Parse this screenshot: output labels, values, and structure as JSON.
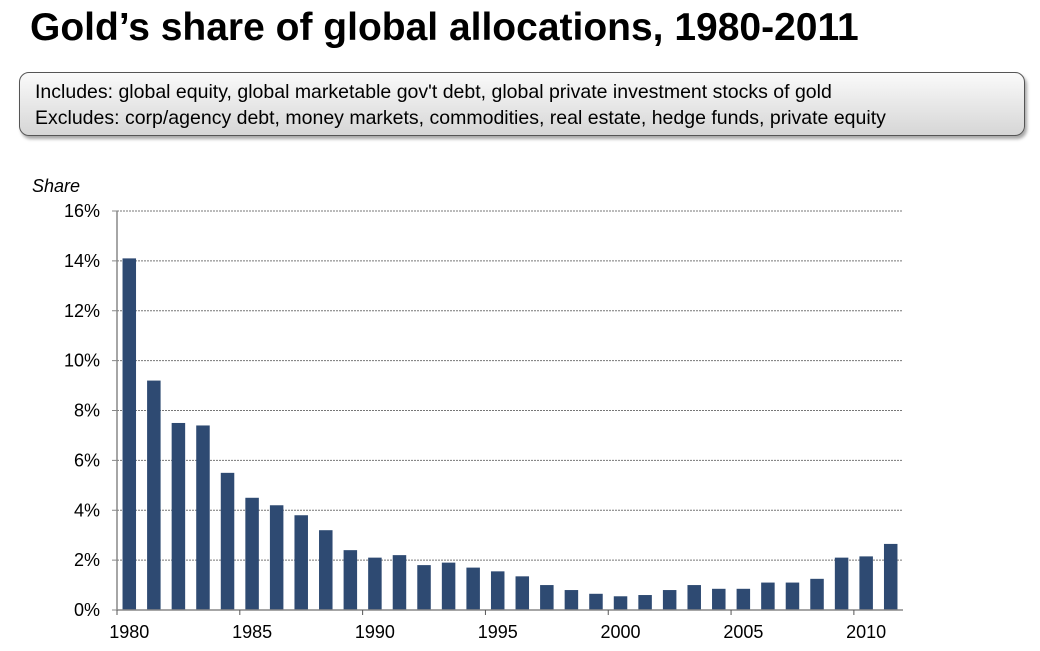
{
  "title": "Gold’s share of global allocations, 1980-2011",
  "note": {
    "includes": "Includes: global equity, global marketable gov't debt, global private investment stocks of gold",
    "excludes": "Excludes: corp/agency debt, money markets, commodities, real estate, hedge funds, private equity"
  },
  "chart_data": {
    "type": "bar",
    "title": "Gold’s share of global allocations, 1980-2011",
    "ylabel": "Share",
    "xlabel": "",
    "ylim": [
      0,
      16
    ],
    "y_unit": "%",
    "yticks": [
      "0%",
      "2%",
      "4%",
      "6%",
      "8%",
      "10%",
      "12%",
      "14%",
      "16%"
    ],
    "xticks": [
      "1980",
      "1985",
      "1990",
      "1995",
      "2000",
      "2005",
      "2010"
    ],
    "grid": true,
    "bar_color": "#2E4A72",
    "categories": [
      1980,
      1981,
      1982,
      1983,
      1984,
      1985,
      1986,
      1987,
      1988,
      1989,
      1990,
      1991,
      1992,
      1993,
      1994,
      1995,
      1996,
      1997,
      1998,
      1999,
      2000,
      2001,
      2002,
      2003,
      2004,
      2005,
      2006,
      2007,
      2008,
      2009,
      2010,
      2011
    ],
    "values": [
      14.1,
      9.2,
      7.5,
      7.4,
      5.5,
      4.5,
      4.2,
      3.8,
      3.2,
      2.4,
      2.1,
      2.2,
      1.8,
      1.9,
      1.7,
      1.55,
      1.35,
      1.0,
      0.8,
      0.65,
      0.55,
      0.6,
      0.8,
      1.0,
      0.85,
      0.85,
      1.1,
      1.1,
      1.25,
      2.1,
      2.15,
      2.65
    ]
  }
}
